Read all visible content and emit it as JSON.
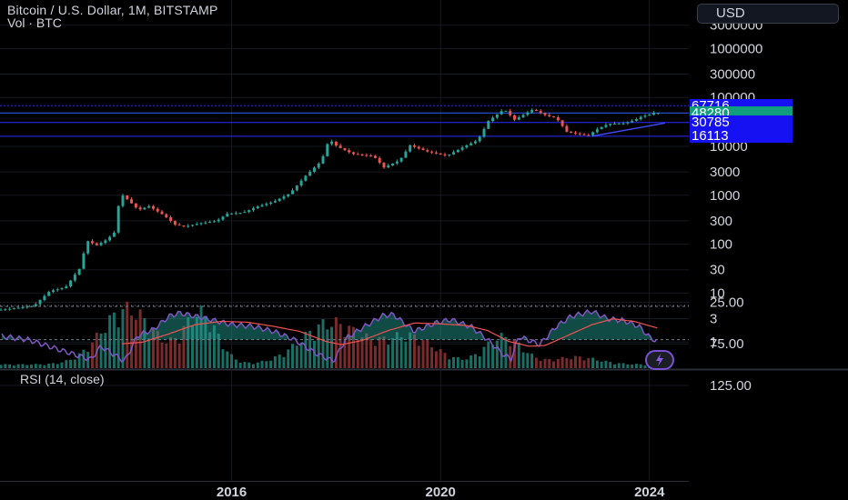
{
  "header": {
    "title": "Bitcoin / U.S. Dollar, 1M, BITSTAMP",
    "volume_label": "Vol · BTC",
    "currency_button": "USD"
  },
  "chart_data": [
    {
      "type": "candlestick",
      "title": "Bitcoin / U.S. Dollar, 1M, BITSTAMP",
      "scale": "log",
      "y_ticks": [
        "3000000",
        "1000000",
        "300000",
        "100000",
        "10000",
        "3000",
        "1000",
        "300",
        "100",
        "30",
        "10",
        "3",
        "1"
      ],
      "y_tick_values": [
        3000000,
        1000000,
        300000,
        100000,
        10000,
        3000,
        1000,
        300,
        100,
        30,
        10,
        3,
        1
      ],
      "x_ticks": [
        "2016",
        "2020",
        "2024"
      ],
      "x_range": [
        2011.6,
        2024.3
      ],
      "grid": true,
      "up_color": "#26a69a",
      "down_color": "#ef5350",
      "price_levels": [
        {
          "label": "67716",
          "value": 67716,
          "bg": "#1511f2"
        },
        {
          "label": "48280",
          "value": 48280,
          "bg": "#0f9f7e"
        },
        {
          "label": "30785",
          "value": 30785,
          "bg": "#1511f2"
        },
        {
          "label": "16113",
          "value": 16113,
          "bg": "#1511f2"
        }
      ],
      "trendline": {
        "start": [
          2022.9,
          16100
        ],
        "end": [
          2024.3,
          30000
        ]
      },
      "anchors": [
        [
          2011.6,
          4.5
        ],
        [
          2012.0,
          5.0
        ],
        [
          2012.3,
          5.5
        ],
        [
          2012.6,
          11
        ],
        [
          2012.9,
          13
        ],
        [
          2013.2,
          35
        ],
        [
          2013.3,
          120
        ],
        [
          2013.5,
          95
        ],
        [
          2013.7,
          125
        ],
        [
          2013.85,
          180
        ],
        [
          2013.95,
          1100
        ],
        [
          2014.1,
          800
        ],
        [
          2014.3,
          500
        ],
        [
          2014.5,
          600
        ],
        [
          2014.8,
          380
        ],
        [
          2015.0,
          250
        ],
        [
          2015.2,
          230
        ],
        [
          2015.5,
          270
        ],
        [
          2015.8,
          300
        ],
        [
          2016.0,
          420
        ],
        [
          2016.3,
          440
        ],
        [
          2016.6,
          600
        ],
        [
          2016.9,
          750
        ],
        [
          2017.2,
          1100
        ],
        [
          2017.5,
          2500
        ],
        [
          2017.8,
          5000
        ],
        [
          2017.95,
          14000
        ],
        [
          2018.1,
          10000
        ],
        [
          2018.4,
          7000
        ],
        [
          2018.8,
          6300
        ],
        [
          2019.0,
          3700
        ],
        [
          2019.3,
          5200
        ],
        [
          2019.5,
          10500
        ],
        [
          2019.8,
          8000
        ],
        [
          2020.2,
          6400
        ],
        [
          2020.5,
          9500
        ],
        [
          2020.8,
          13500
        ],
        [
          2021.0,
          33000
        ],
        [
          2021.3,
          58000
        ],
        [
          2021.5,
          35000
        ],
        [
          2021.85,
          57000
        ],
        [
          2022.1,
          43000
        ],
        [
          2022.3,
          38000
        ],
        [
          2022.5,
          19900
        ],
        [
          2022.9,
          16500
        ],
        [
          2023.1,
          23000
        ],
        [
          2023.3,
          29000
        ],
        [
          2023.6,
          29500
        ],
        [
          2023.8,
          34500
        ],
        [
          2023.95,
          42000
        ],
        [
          2024.05,
          43000
        ],
        [
          2024.15,
          48280
        ]
      ]
    },
    {
      "type": "bar",
      "title": "Vol · BTC",
      "note": "relative monthly volume shown as bars; colored by candle direction"
    },
    {
      "type": "line",
      "title": "RSI (14, close)",
      "y_ticks": [
        "125.00",
        "75.00",
        "25.00"
      ],
      "y_tick_values": [
        125,
        75,
        25
      ],
      "band": [
        30,
        70
      ],
      "band_color": "#7e57c2",
      "series": [
        {
          "color": "#7e57c2",
          "anchors": [
            [
              2011.6,
              66
            ],
            [
              2012.1,
              70
            ],
            [
              2012.6,
              80
            ],
            [
              2013.0,
              88
            ],
            [
              2013.3,
              94
            ],
            [
              2013.5,
              78
            ],
            [
              2013.8,
              90
            ],
            [
              2013.95,
              96
            ],
            [
              2014.2,
              65
            ],
            [
              2014.5,
              58
            ],
            [
              2014.8,
              42
            ],
            [
              2015.0,
              38
            ],
            [
              2015.4,
              43
            ],
            [
              2015.8,
              49
            ],
            [
              2016.0,
              52
            ],
            [
              2016.4,
              54
            ],
            [
              2016.8,
              60
            ],
            [
              2017.2,
              70
            ],
            [
              2017.6,
              86
            ],
            [
              2017.95,
              96
            ],
            [
              2018.2,
              68
            ],
            [
              2018.5,
              56
            ],
            [
              2018.9,
              41
            ],
            [
              2019.1,
              40
            ],
            [
              2019.5,
              60
            ],
            [
              2019.9,
              50
            ],
            [
              2020.2,
              46
            ],
            [
              2020.6,
              55
            ],
            [
              2020.9,
              70
            ],
            [
              2021.2,
              88
            ],
            [
              2021.35,
              93
            ],
            [
              2021.5,
              66
            ],
            [
              2021.9,
              76
            ],
            [
              2022.2,
              55
            ],
            [
              2022.5,
              42
            ],
            [
              2022.9,
              36
            ],
            [
              2023.2,
              45
            ],
            [
              2023.5,
              47
            ],
            [
              2023.8,
              54
            ],
            [
              2024.0,
              67
            ],
            [
              2024.15,
              72
            ]
          ]
        },
        {
          "color": "#ef5350",
          "anchors": [
            [
              2013.9,
              75
            ],
            [
              2014.3,
              73
            ],
            [
              2014.8,
              63
            ],
            [
              2015.3,
              52
            ],
            [
              2015.8,
              48
            ],
            [
              2016.3,
              49
            ],
            [
              2016.8,
              54
            ],
            [
              2017.3,
              60
            ],
            [
              2017.8,
              72
            ],
            [
              2018.1,
              76
            ],
            [
              2018.5,
              71
            ],
            [
              2019.0,
              59
            ],
            [
              2019.5,
              50
            ],
            [
              2020.0,
              51
            ],
            [
              2020.5,
              53
            ],
            [
              2020.9,
              59
            ],
            [
              2021.3,
              72
            ],
            [
              2021.7,
              78
            ],
            [
              2022.0,
              77
            ],
            [
              2022.4,
              66
            ],
            [
              2022.9,
              52
            ],
            [
              2023.3,
              45
            ],
            [
              2023.7,
              48
            ],
            [
              2024.15,
              56
            ]
          ]
        }
      ]
    }
  ]
}
